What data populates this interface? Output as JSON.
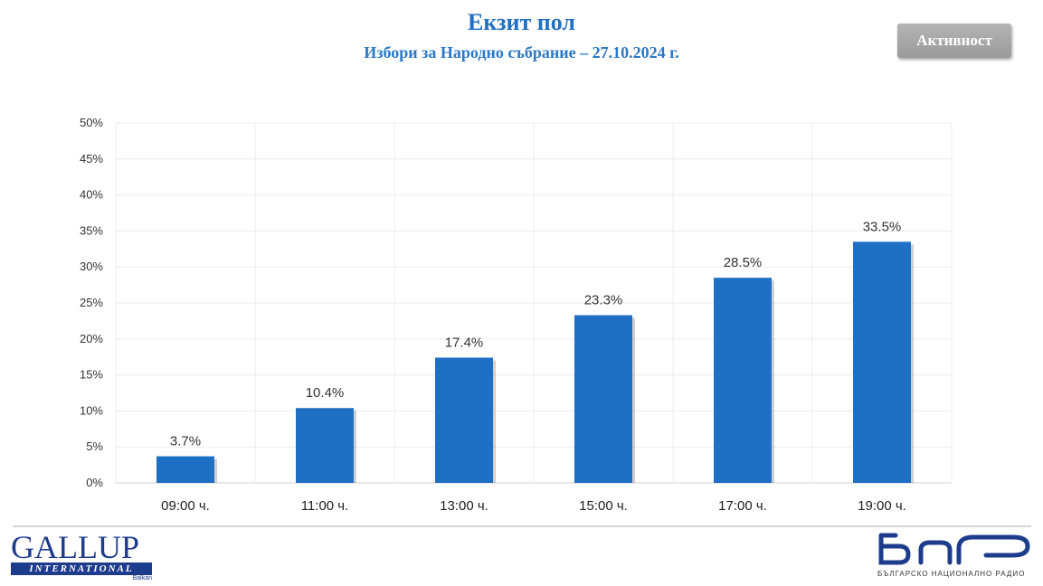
{
  "header": {
    "title": "Екзит пол",
    "subtitle": "Избори за Народно събрание – 27.10.2024 г."
  },
  "toolbar": {
    "activity_label": "Активност"
  },
  "colors": {
    "bar": "#1f6fc4",
    "title": "#1f6fc4",
    "button": "#a8a8a8"
  },
  "chart_data": {
    "type": "bar",
    "categories": [
      "09:00 ч.",
      "11:00 ч.",
      "13:00 ч.",
      "15:00 ч.",
      "17:00 ч.",
      "19:00 ч."
    ],
    "values": [
      3.7,
      10.4,
      17.4,
      23.3,
      28.5,
      33.5
    ],
    "data_labels": [
      "3.7%",
      "10.4%",
      "17.4%",
      "23.3%",
      "28.5%",
      "33.5%"
    ],
    "y_ticks": [
      "0%",
      "5%",
      "10%",
      "15%",
      "20%",
      "25%",
      "30%",
      "35%",
      "40%",
      "45%",
      "50%"
    ],
    "ylim": [
      0,
      50
    ],
    "title": "",
    "xlabel": "",
    "ylabel": "",
    "grid": true,
    "legend": "none"
  },
  "logos": {
    "gallup": {
      "word": "GALLUP",
      "bar_text": "INTERNATIONAL",
      "sub": "Balkan"
    },
    "bnr": {
      "text": "БЪЛГАРСКО НАЦИОНАЛНО РАДИО"
    }
  }
}
